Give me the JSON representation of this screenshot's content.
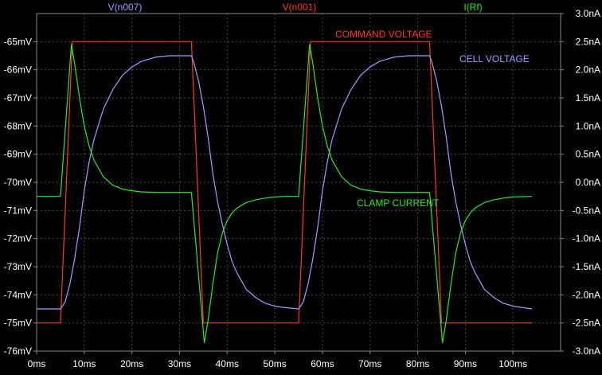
{
  "colors": {
    "background": "#000000",
    "grid": "#4a4a4a",
    "axis_text": "#ffffff",
    "n007": "#9f9fff",
    "n001": "#ff3a1f",
    "rf": "#2ee82e"
  },
  "chart_data": {
    "type": "line",
    "grid": true,
    "x": {
      "unit": "ms",
      "range": [
        0,
        110
      ],
      "ticks": [
        0,
        10,
        20,
        30,
        40,
        50,
        60,
        70,
        80,
        90,
        100
      ],
      "tick_labels": [
        "0ms",
        "10ms",
        "20ms",
        "30ms",
        "40ms",
        "50ms",
        "60ms",
        "70ms",
        "80ms",
        "90ms",
        "100ms"
      ]
    },
    "y_left": {
      "unit": "mV",
      "range": [
        -76,
        -64
      ],
      "ticks": [
        -65,
        -66,
        -67,
        -68,
        -69,
        -70,
        -71,
        -72,
        -73,
        -74,
        -75,
        -76
      ],
      "tick_labels": [
        "-65mV",
        "-66mV",
        "-67mV",
        "-68mV",
        "-69mV",
        "-70mV",
        "-71mV",
        "-72mV",
        "-73mV",
        "-74mV",
        "-75mV",
        "-76mV"
      ]
    },
    "y_right": {
      "unit": "nA",
      "range": [
        -3.0,
        3.0
      ],
      "ticks": [
        3.0,
        2.5,
        2.0,
        1.5,
        1.0,
        0.5,
        0.0,
        -0.5,
        -1.0,
        -1.5,
        -2.0,
        -2.5,
        -3.0
      ],
      "tick_labels": [
        "3.0nA",
        "2.5nA",
        "2.0nA",
        "1.5nA",
        "1.0nA",
        "0.5nA",
        "0.0nA",
        "-0.5nA",
        "-1.0nA",
        "-1.5nA",
        "-2.0nA",
        "-2.5nA",
        "-3.0nA"
      ]
    },
    "legend": [
      "V(n007)",
      "V(n001)",
      "I(Rf)"
    ],
    "annotations": [
      "COMMAND VOLTAGE",
      "CELL VOLTAGE",
      "CLAMP CURRENT"
    ],
    "series": [
      {
        "name": "V(n001)",
        "axis": "left",
        "color": "#ff3a1f",
        "x": [
          0,
          5,
          7.5,
          32.5,
          35,
          55,
          57.5,
          82.5,
          85,
          104
        ],
        "y": [
          -75.0,
          -75.0,
          -65.0,
          -65.0,
          -75.0,
          -75.0,
          -65.0,
          -65.0,
          -75.0,
          -75.0
        ]
      },
      {
        "name": "V(n007)",
        "axis": "left",
        "color": "#9f9fff",
        "x": [
          0,
          5,
          6,
          7,
          8,
          9,
          10,
          11,
          12,
          14,
          16,
          18,
          20,
          22,
          25,
          28,
          32.5,
          33,
          34,
          35,
          36,
          37,
          38,
          39,
          40,
          41,
          42,
          44,
          46,
          48,
          50,
          52,
          55,
          56,
          57,
          58,
          59,
          60,
          61,
          62,
          64,
          66,
          68,
          70,
          72,
          75,
          78,
          82.5,
          83,
          84,
          85,
          86,
          87,
          88,
          89,
          90,
          91,
          92,
          94,
          96,
          98,
          100,
          104
        ],
        "y": [
          -74.5,
          -74.5,
          -74.25,
          -73.6,
          -72.7,
          -71.6,
          -70.3,
          -69.3,
          -68.5,
          -67.4,
          -66.7,
          -66.2,
          -65.9,
          -65.7,
          -65.55,
          -65.5,
          -65.5,
          -65.74,
          -66.4,
          -67.3,
          -68.4,
          -69.7,
          -70.7,
          -71.5,
          -72.2,
          -72.8,
          -73.2,
          -73.8,
          -74.1,
          -74.3,
          -74.4,
          -74.45,
          -74.5,
          -74.25,
          -73.6,
          -72.7,
          -71.6,
          -70.3,
          -69.3,
          -68.5,
          -67.4,
          -66.7,
          -66.2,
          -65.9,
          -65.7,
          -65.55,
          -65.5,
          -65.5,
          -65.74,
          -66.4,
          -67.3,
          -68.4,
          -69.7,
          -70.7,
          -71.5,
          -72.2,
          -72.8,
          -73.2,
          -73.8,
          -74.1,
          -74.3,
          -74.4,
          -74.5
        ]
      },
      {
        "name": "I(Rf)",
        "axis": "right",
        "color": "#2ee82e",
        "x": [
          0,
          5,
          7.3,
          8,
          9,
          10,
          11,
          12,
          14,
          16,
          18,
          20,
          22,
          25,
          28,
          32.5,
          35.2,
          36,
          37,
          38,
          39,
          40,
          41,
          42,
          44,
          46,
          48,
          50,
          52,
          55,
          57.3,
          58,
          59,
          60,
          61,
          62,
          64,
          66,
          68,
          70,
          72,
          75,
          78,
          82.5,
          85.2,
          86,
          87,
          88,
          89,
          90,
          91,
          92,
          94,
          96,
          98,
          100,
          104
        ],
        "y": [
          -0.25,
          -0.25,
          2.45,
          2.1,
          1.5,
          1.0,
          0.65,
          0.4,
          0.1,
          -0.05,
          -0.12,
          -0.15,
          -0.17,
          -0.18,
          -0.18,
          -0.18,
          -2.85,
          -2.45,
          -1.8,
          -1.25,
          -0.9,
          -0.68,
          -0.55,
          -0.46,
          -0.36,
          -0.31,
          -0.28,
          -0.26,
          -0.25,
          -0.25,
          2.45,
          2.1,
          1.5,
          1.0,
          0.65,
          0.4,
          0.1,
          -0.05,
          -0.12,
          -0.15,
          -0.17,
          -0.18,
          -0.18,
          -0.18,
          -2.85,
          -2.45,
          -1.8,
          -1.25,
          -0.9,
          -0.68,
          -0.55,
          -0.46,
          -0.36,
          -0.31,
          -0.28,
          -0.26,
          -0.25
        ]
      }
    ]
  }
}
